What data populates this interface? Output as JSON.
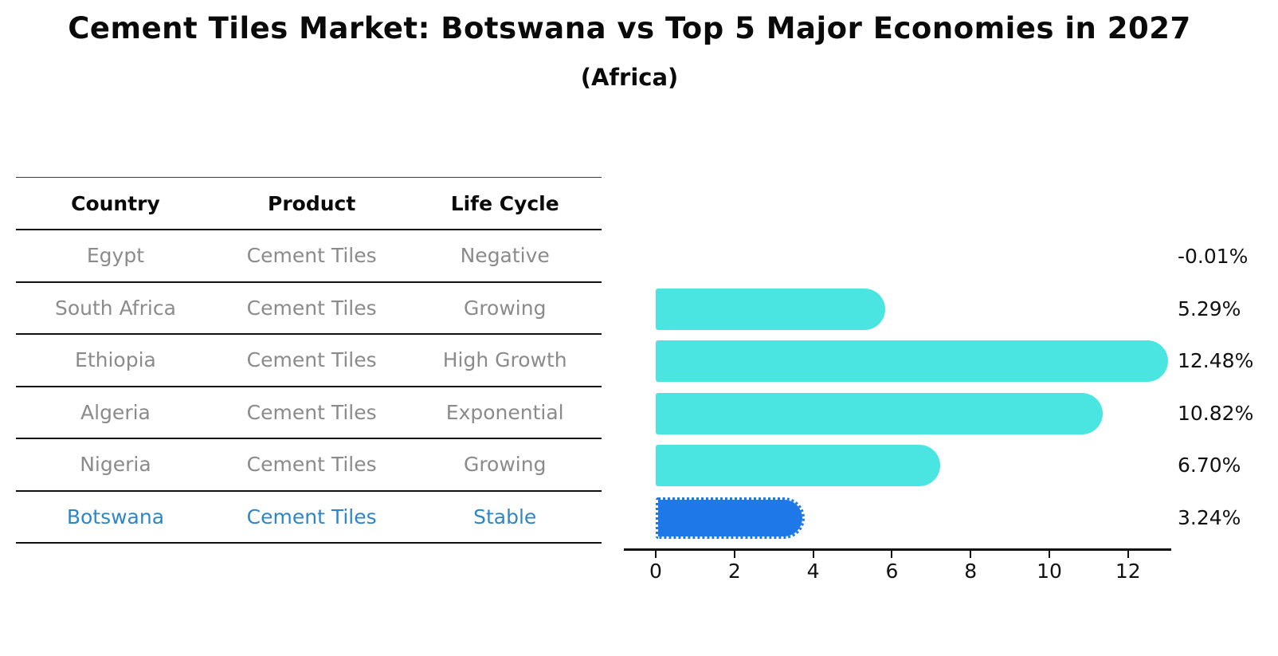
{
  "page": {
    "title": "Cement Tiles Market: Botswana vs Top 5 Major Economies in 2027",
    "subtitle": "(Africa)"
  },
  "table": {
    "headers": [
      "Country",
      "Product",
      "Life Cycle"
    ],
    "rows": [
      {
        "country": "Egypt",
        "product": "Cement Tiles",
        "life_cycle": "Negative",
        "highlighted": false
      },
      {
        "country": "South Africa",
        "product": "Cement Tiles",
        "life_cycle": "Growing",
        "highlighted": false
      },
      {
        "country": "Ethiopia",
        "product": "Cement Tiles",
        "life_cycle": "High Growth",
        "highlighted": false
      },
      {
        "country": "Algeria",
        "product": "Cement Tiles",
        "life_cycle": "Exponential",
        "highlighted": false
      },
      {
        "country": "Nigeria",
        "product": "Cement Tiles",
        "life_cycle": "Growing",
        "highlighted": false
      },
      {
        "country": "Botswana",
        "product": "Cement Tiles",
        "life_cycle": "Stable",
        "highlighted": true
      }
    ]
  },
  "chart_data": {
    "type": "bar",
    "orientation": "horizontal",
    "title": "Cement Tiles Market: Botswana vs Top 5 Major Economies in 2027",
    "subtitle": "(Africa)",
    "categories": [
      "Egypt",
      "South Africa",
      "Ethiopia",
      "Algeria",
      "Nigeria",
      "Botswana"
    ],
    "values": [
      -0.01,
      5.29,
      12.48,
      10.82,
      6.7,
      3.24
    ],
    "value_labels": [
      "-0.01%",
      "5.29%",
      "12.48%",
      "10.82%",
      "6.70%",
      "3.24%"
    ],
    "xlabel": "",
    "ylabel": "",
    "xticks": [
      0,
      2,
      4,
      6,
      8,
      10,
      12
    ],
    "xlim": [
      -0.8,
      13.06
    ],
    "grid": false,
    "legend": "none",
    "highlight_category": "Botswana",
    "colors": {
      "bar": "#4ae4e1",
      "highlight_bar": "#1f78e8",
      "highlight_text": "#2e86c8",
      "muted_text": "#8b8b8b",
      "label_text": "#111111"
    }
  }
}
